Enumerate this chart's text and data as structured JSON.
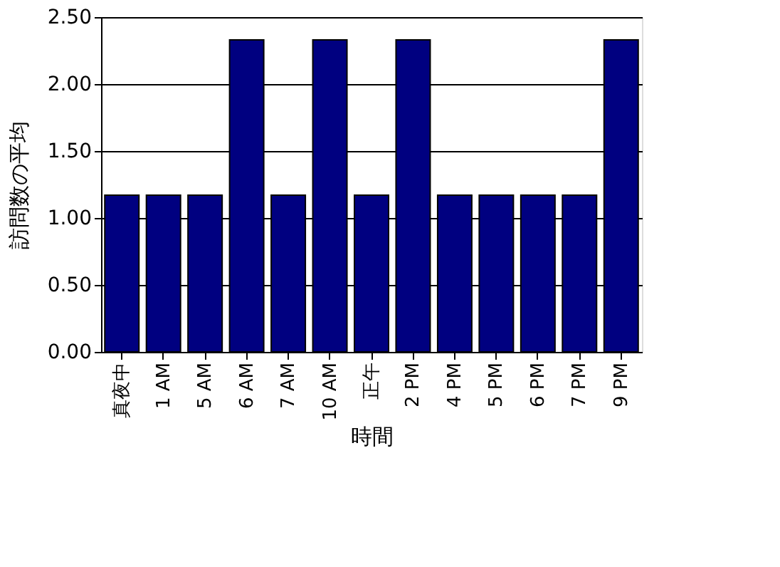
{
  "chart_data": {
    "type": "bar",
    "xlabel": "時間",
    "ylabel": "訪問数の平均",
    "categories": [
      "真夜中",
      "1 AM",
      "5 AM",
      "6 AM",
      "7 AM",
      "10 AM",
      "正午",
      "2 PM",
      "4 PM",
      "5 PM",
      "6 PM",
      "7 PM",
      "9 PM"
    ],
    "values": [
      1.17,
      1.17,
      1.17,
      2.33,
      1.17,
      2.33,
      1.17,
      2.33,
      1.17,
      1.17,
      1.17,
      1.17,
      2.33
    ],
    "color": "#000080",
    "ylim": [
      0,
      2.5
    ],
    "yticks": [
      {
        "value": 0,
        "label": "0.00"
      },
      {
        "value": 0.5,
        "label": "0.50"
      },
      {
        "value": 1,
        "label": "1.00"
      },
      {
        "value": 1.5,
        "label": "1.50"
      },
      {
        "value": 2,
        "label": "2.00"
      },
      {
        "value": 2.5,
        "label": "2.50"
      }
    ],
    "grid": "y"
  }
}
